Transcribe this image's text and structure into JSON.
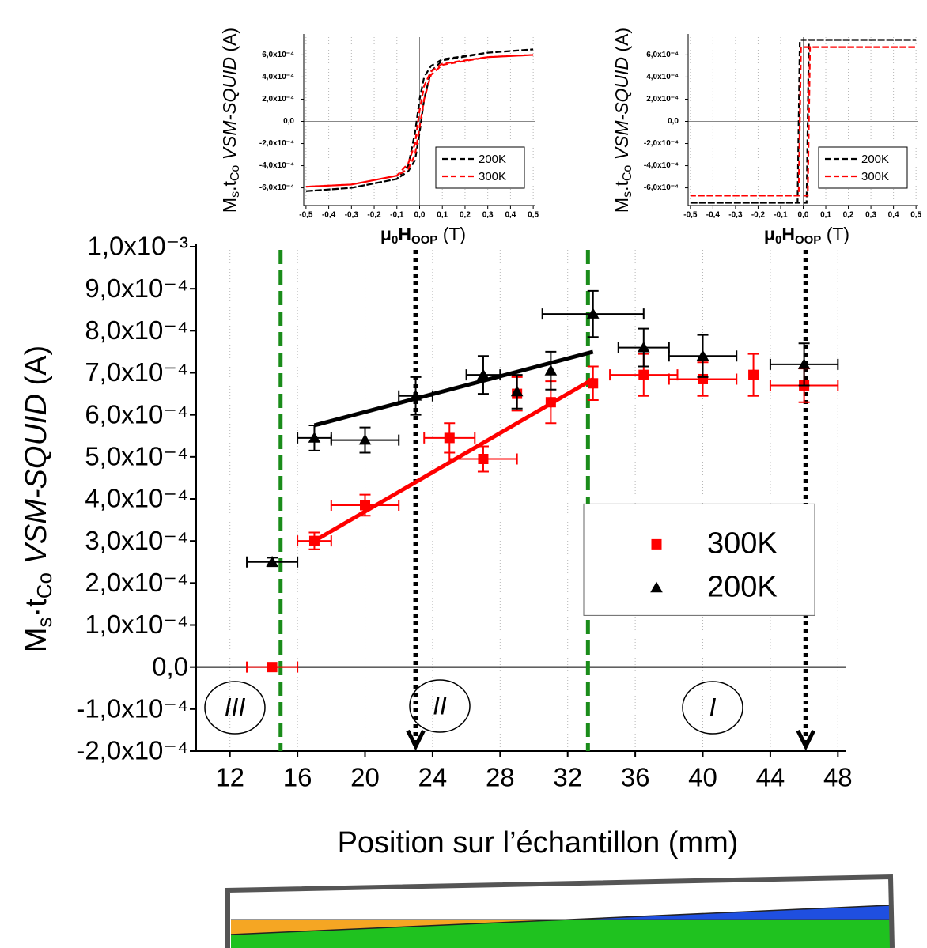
{
  "chart_data": [
    {
      "type": "scatter",
      "x_label": "Position sur l’échantillon (mm)",
      "y_label": [
        "M",
        "s",
        "·t",
        "Co",
        " VSM-SQUID",
        " (A)"
      ],
      "xlim": [
        10,
        48.5
      ],
      "xticks": [
        12,
        16,
        20,
        24,
        28,
        32,
        36,
        40,
        44,
        48
      ],
      "ylim": [
        -0.0002,
        0.001
      ],
      "yticks": [
        {
          "value": 0.001,
          "label": "1,0x10⁻³"
        },
        {
          "value": 0.0009,
          "label": "9,0x10⁻⁴"
        },
        {
          "value": 0.0008,
          "label": "8,0x10⁻⁴"
        },
        {
          "value": 0.0007,
          "label": "7,0x10⁻⁴"
        },
        {
          "value": 0.0006,
          "label": "6,0x10⁻⁴"
        },
        {
          "value": 0.0005,
          "label": "5,0x10⁻⁴"
        },
        {
          "value": 0.0004,
          "label": "4,0x10⁻⁴"
        },
        {
          "value": 0.0003,
          "label": "3,0x10⁻⁴"
        },
        {
          "value": 0.0002,
          "label": "2,0x10⁻⁴"
        },
        {
          "value": 0.0001,
          "label": "1,0x10⁻⁴"
        },
        {
          "value": 0,
          "label": "0,0"
        },
        {
          "value": -0.0001,
          "label": "-1,0x10⁻⁴"
        },
        {
          "value": -0.0002,
          "label": "-2,0x10⁻⁴"
        }
      ],
      "grid": "x",
      "zero_lines": [
        "y"
      ],
      "zero_line_color": "#000000",
      "legend": "center right",
      "series": [
        {
          "name": "300K",
          "color": "#ff0000",
          "marker": "square",
          "x": [
            14.5,
            17,
            20,
            25,
            27,
            29,
            31,
            33.5,
            36.5,
            40,
            43,
            46
          ],
          "values": [
            0,
            0.0003,
            0.000385,
            0.000545,
            0.000495,
            0.00065,
            0.00063,
            0.000675,
            0.000695,
            0.000685,
            0.000695,
            0.00067
          ],
          "xerr": [
            1.5,
            1,
            2,
            1.5,
            2,
            0,
            0,
            0,
            2,
            2,
            0,
            2
          ],
          "yerr": [
            0,
            2e-05,
            2.5e-05,
            3.5e-05,
            3e-05,
            4e-05,
            5e-05,
            4e-05,
            5e-05,
            4e-05,
            5e-05,
            4e-05
          ]
        },
        {
          "name": "200K",
          "color": "#000000",
          "marker": "triangle",
          "x": [
            14.5,
            17,
            20,
            23,
            27,
            29,
            31,
            33.5,
            36.5,
            40,
            46
          ],
          "values": [
            0.00025,
            0.000545,
            0.00054,
            0.000645,
            0.000695,
            0.000655,
            0.000705,
            0.00084,
            0.00076,
            0.00074,
            0.00072
          ],
          "xerr": [
            1.5,
            1,
            2,
            1,
            1,
            0,
            0,
            3,
            1.5,
            2,
            2
          ],
          "yerr": [
            1e-05,
            3e-05,
            3e-05,
            4.5e-05,
            4.5e-05,
            4e-05,
            4.5e-05,
            5.5e-05,
            4.5e-05,
            5e-05,
            5e-05
          ]
        }
      ],
      "fits": [
        {
          "color": "#ff0000",
          "x": [
            17,
            33.5
          ],
          "values": [
            0.0003,
            0.000685
          ]
        },
        {
          "color": "#000000",
          "x": [
            17,
            33.5
          ],
          "values": [
            0.000575,
            0.00075
          ]
        }
      ],
      "vlines": [
        {
          "x": 15,
          "color": "#1a8c1a",
          "style": "dashed"
        },
        {
          "x": 33.2,
          "color": "#1a8c1a",
          "style": "dashed"
        },
        {
          "x": 23,
          "color": "#000000",
          "style": "dotted",
          "arrow": true
        },
        {
          "x": 46.1,
          "color": "#000000",
          "style": "dotted",
          "arrow": true
        }
      ],
      "region_labels": [
        "III",
        "II",
        "I"
      ]
    },
    {
      "type": "line",
      "x_label": [
        "μ",
        "0",
        "H",
        "OOP",
        " (T)"
      ],
      "y_label": [
        "M",
        "s",
        ".t",
        "Co",
        " VSM-SQUID",
        " (A)"
      ],
      "xlim": [
        -0.51,
        0.51
      ],
      "xticks": [
        {
          "value": -0.5,
          "label": "-0,5"
        },
        {
          "value": -0.4,
          "label": "-0,4"
        },
        {
          "value": -0.3,
          "label": "-0,3"
        },
        {
          "value": -0.2,
          "label": "-0,2"
        },
        {
          "value": -0.1,
          "label": "-0,1"
        },
        {
          "value": 0,
          "label": "0,0"
        },
        {
          "value": 0.1,
          "label": "0,1"
        },
        {
          "value": 0.2,
          "label": "0,2"
        },
        {
          "value": 0.3,
          "label": "0,3"
        },
        {
          "value": 0.4,
          "label": "0,4"
        },
        {
          "value": 0.5,
          "label": "0,5"
        }
      ],
      "ylim": [
        -0.00076,
        0.00076
      ],
      "yticks": [
        {
          "value": 0.0006,
          "label": "6,0x10⁻⁴"
        },
        {
          "value": 0.0004,
          "label": "4,0x10⁻⁴"
        },
        {
          "value": 0.0002,
          "label": "2,0x10⁻⁴"
        },
        {
          "value": 0,
          "label": "0,0"
        },
        {
          "value": -0.0002,
          "label": "-2,0x10⁻⁴"
        },
        {
          "value": -0.0004,
          "label": "-4,0x10⁻⁴"
        },
        {
          "value": -0.0006,
          "label": "-6,0x10⁻⁴"
        }
      ],
      "grid": "x",
      "zero_lines": [
        "x",
        "y"
      ],
      "zero_line_color": "#888888",
      "legend": "lower right",
      "series": [
        {
          "name": "200K",
          "color": "#000000",
          "x": [
            -0.5,
            -0.3,
            -0.1,
            -0.05,
            -0.02,
            0,
            0.02,
            0.05,
            0.1,
            0.3,
            0.5,
            0.3,
            0.1,
            0.05,
            0.02,
            0,
            -0.02,
            -0.05,
            -0.1,
            -0.3,
            -0.5
          ],
          "values": [
            -0.00063,
            -0.0006,
            -0.00052,
            -0.00045,
            -0.00035,
            -0.0001,
            0.0002,
            0.00045,
            0.00055,
            0.00062,
            0.00065,
            0.00062,
            0.00056,
            0.0005,
            0.0004,
            0.0002,
            -0.0001,
            -0.0004,
            -0.00052,
            -0.0006,
            -0.00063
          ]
        },
        {
          "name": "300K",
          "color": "#ff0000",
          "x": [
            -0.5,
            -0.3,
            -0.1,
            -0.05,
            -0.02,
            0,
            0.02,
            0.05,
            0.1,
            0.3,
            0.5,
            0.3,
            0.1,
            0.05,
            0.02,
            0,
            -0.02,
            -0.05,
            -0.1,
            -0.3,
            -0.5
          ],
          "values": [
            -0.00059,
            -0.00057,
            -0.00049,
            -0.00043,
            -0.0003,
            -5e-05,
            0.0002,
            0.00042,
            0.00051,
            0.00058,
            0.0006,
            0.00058,
            0.00052,
            0.00045,
            0.00032,
            0.0001,
            -0.0002,
            -0.00038,
            -0.00049,
            -0.00057,
            -0.00059
          ]
        }
      ]
    },
    {
      "type": "line",
      "x_label": [
        "μ",
        "0",
        "H",
        "OOP",
        " (T)"
      ],
      "y_label": [
        "M",
        "s",
        ".t",
        "Co",
        " VSM-SQUID",
        " (A)"
      ],
      "xlim": [
        -0.51,
        0.51
      ],
      "xticks": [
        {
          "value": -0.5,
          "label": "-0,5"
        },
        {
          "value": -0.4,
          "label": "-0,4"
        },
        {
          "value": -0.3,
          "label": "-0,3"
        },
        {
          "value": -0.2,
          "label": "-0,2"
        },
        {
          "value": -0.1,
          "label": "-0,1"
        },
        {
          "value": 0,
          "label": "0,0"
        },
        {
          "value": 0.1,
          "label": "0,1"
        },
        {
          "value": 0.2,
          "label": "0,2"
        },
        {
          "value": 0.3,
          "label": "0,3"
        },
        {
          "value": 0.4,
          "label": "0,4"
        },
        {
          "value": 0.5,
          "label": "0,5"
        }
      ],
      "ylim": [
        -0.00076,
        0.00076
      ],
      "yticks": [
        {
          "value": 0.0006,
          "label": "6,0x10⁻⁴"
        },
        {
          "value": 0.0004,
          "label": "4,0x10⁻⁴"
        },
        {
          "value": 0.0002,
          "label": "2,0x10⁻⁴"
        },
        {
          "value": 0,
          "label": "0,0"
        },
        {
          "value": -0.0002,
          "label": "-2,0x10⁻⁴"
        },
        {
          "value": -0.0004,
          "label": "-4,0x10⁻⁴"
        },
        {
          "value": -0.0006,
          "label": "-6,0x10⁻⁴"
        }
      ],
      "grid": "x",
      "zero_lines": [
        "x",
        "y"
      ],
      "zero_line_color": "#888888",
      "legend": "lower right",
      "series": [
        {
          "name": "200K",
          "color": "#000000",
          "x": [
            -0.5,
            0.015,
            0.025,
            0.5,
            -0.015,
            -0.025,
            -0.5
          ],
          "values": [
            -0.000735,
            -0.000735,
            0.000735,
            0.000735,
            0.000735,
            -0.000735,
            -0.000735
          ]
        },
        {
          "name": "300K",
          "color": "#ff0000",
          "x": [
            -0.5,
            0.02,
            0.03,
            0.5,
            -0.01,
            -0.02,
            -0.5
          ],
          "values": [
            -0.00067,
            -0.00067,
            0.00067,
            0.00067,
            0.00067,
            -0.00067,
            -0.00067
          ]
        }
      ]
    }
  ]
}
